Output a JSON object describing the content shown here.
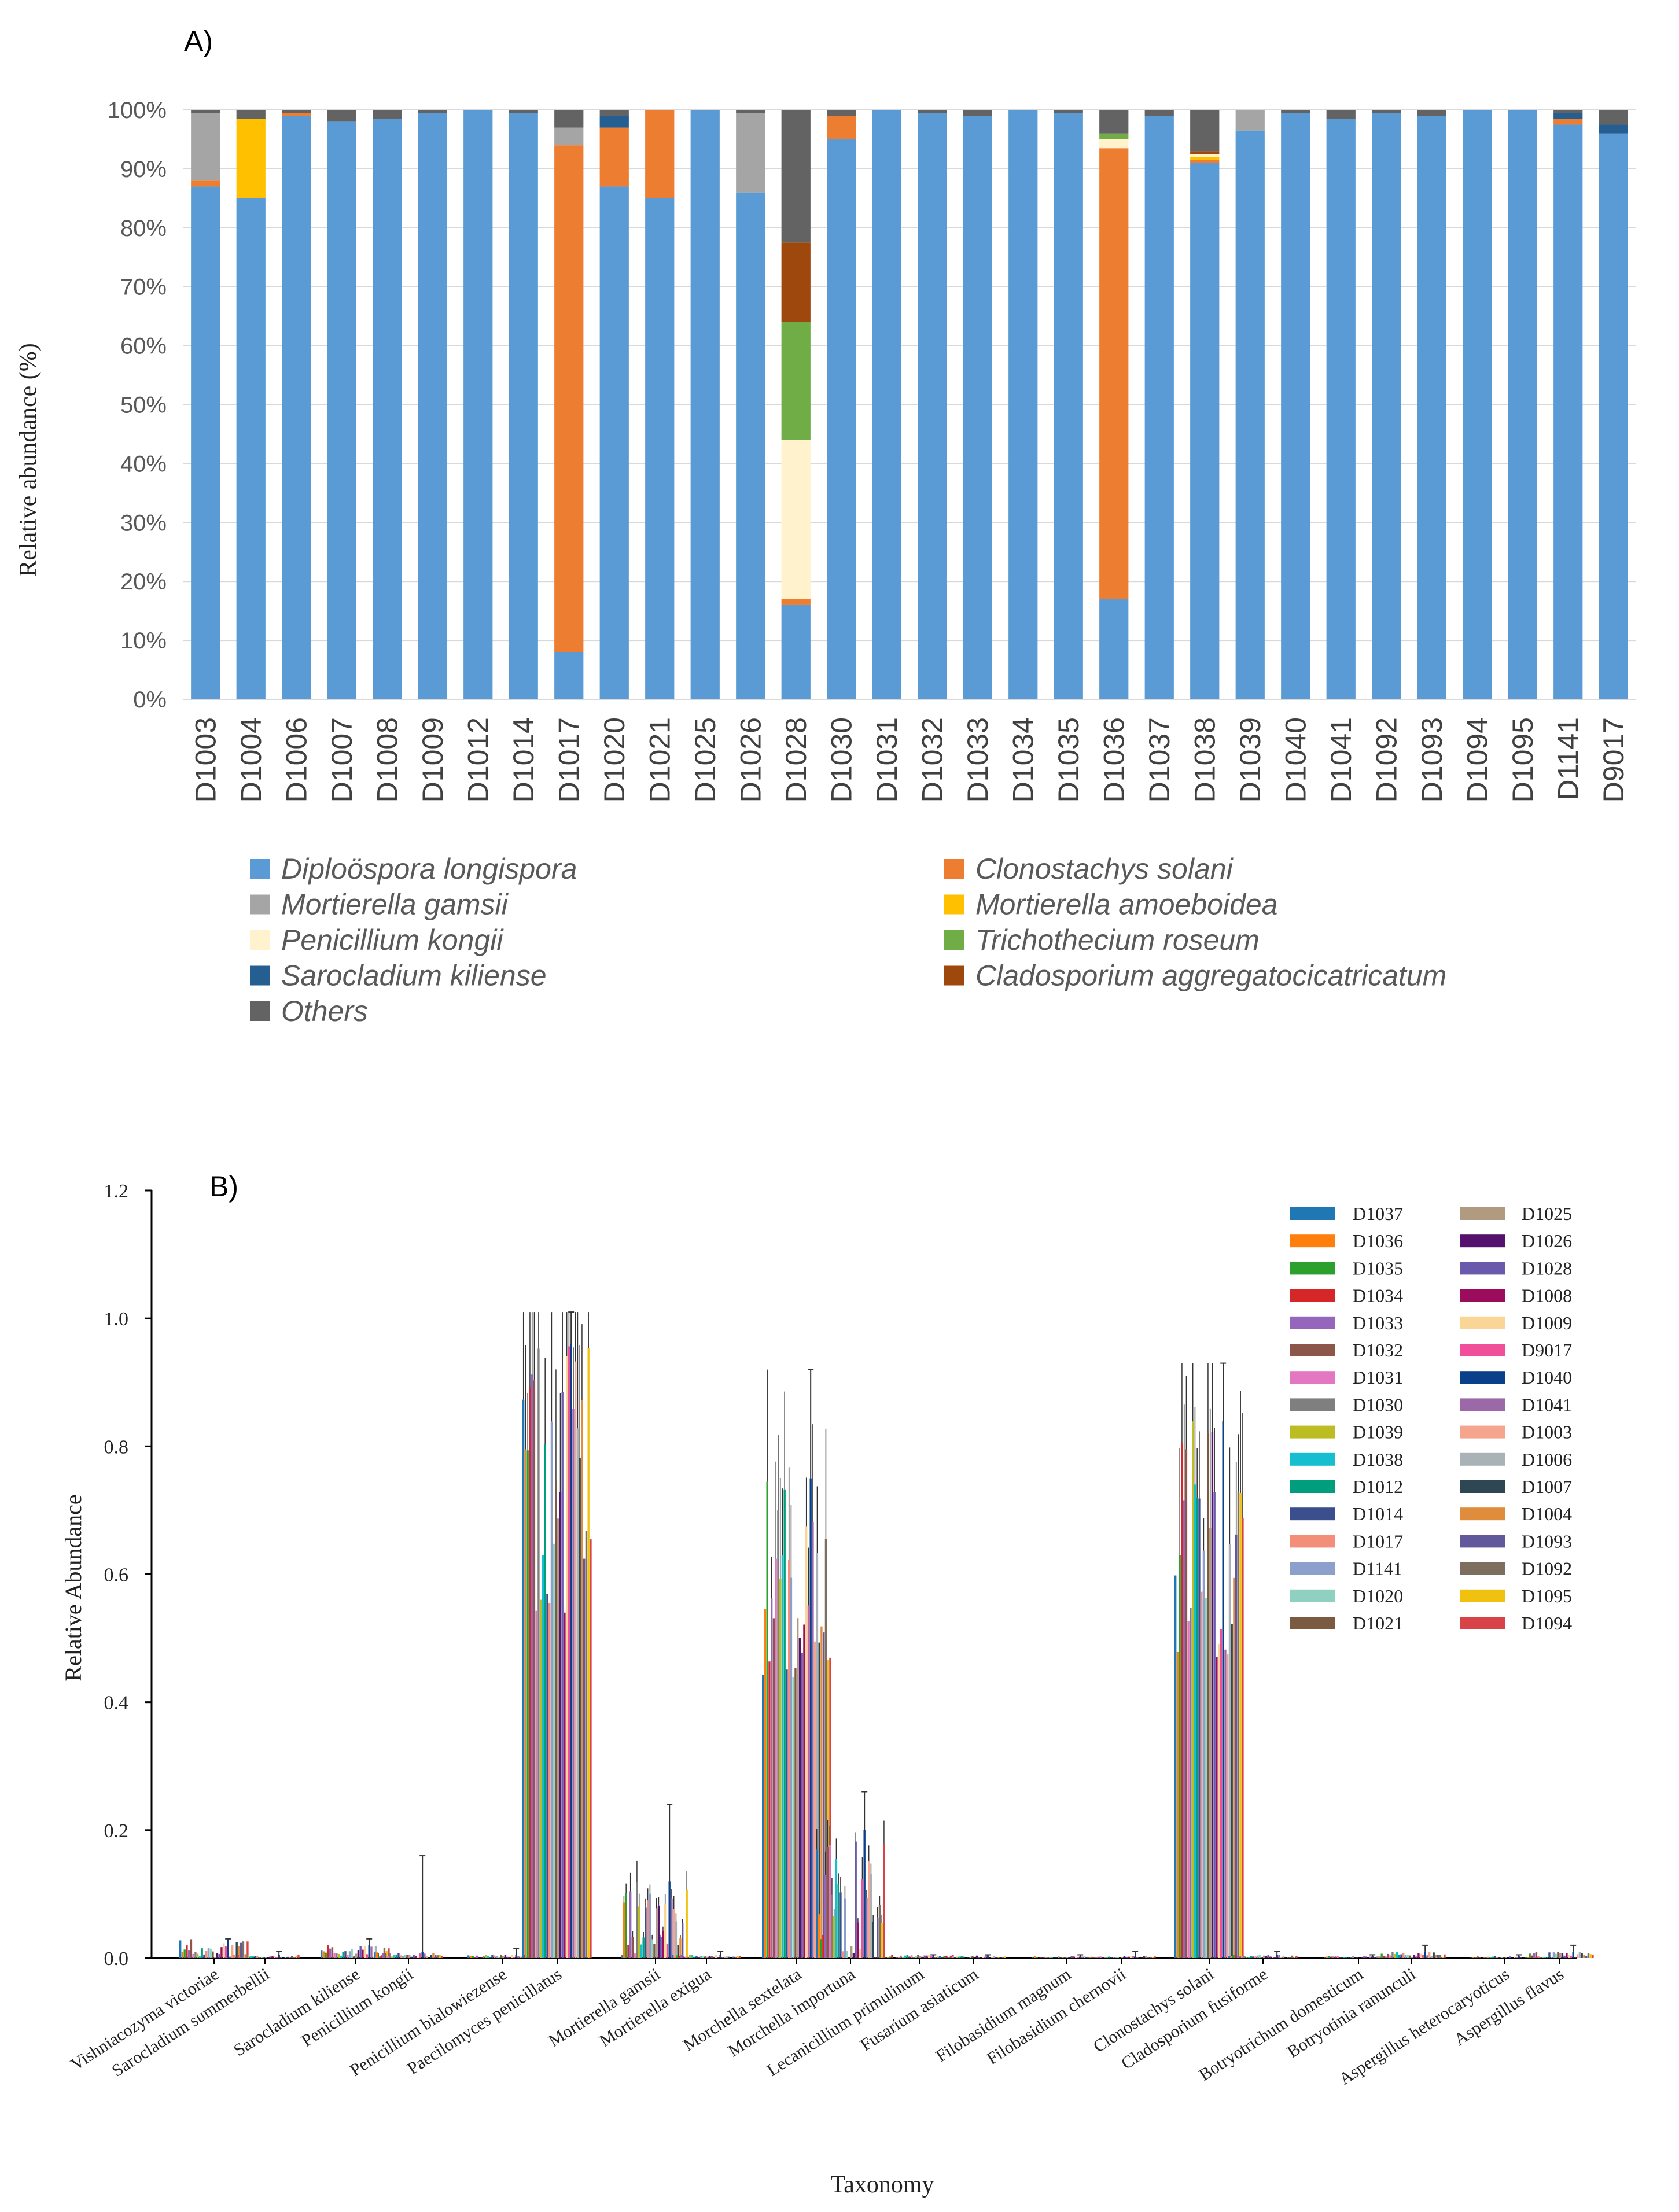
{
  "panelA": {
    "label": "A)",
    "ylabel": "Relative abundance (%)",
    "yticks": [
      "0%",
      "10%",
      "20%",
      "30%",
      "40%",
      "50%",
      "60%",
      "70%",
      "80%",
      "90%",
      "100%"
    ],
    "legend": [
      {
        "name": "Diploöspora longispora",
        "color": "#5b9bd5"
      },
      {
        "name": "Clonostachys solani",
        "color": "#ed7d31"
      },
      {
        "name": "Mortierella gamsii",
        "color": "#a5a5a5"
      },
      {
        "name": "Mortierella amoeboidea",
        "color": "#ffc000"
      },
      {
        "name": "Penicillium kongii",
        "color": "#fff2cc"
      },
      {
        "name": "Trichothecium roseum",
        "color": "#70ad47"
      },
      {
        "name": "Sarocladium kiliense",
        "color": "#255e91"
      },
      {
        "name": "Cladosporium aggregatocicatricatum",
        "color": "#9e480e"
      },
      {
        "name": "Others",
        "color": "#636363"
      }
    ]
  },
  "panelB": {
    "label": "B)",
    "ylabel": "Relative Abundance",
    "xlabel": "Taxonomy",
    "yticks": [
      "0.0",
      "0.2",
      "0.4",
      "0.6",
      "0.8",
      "1.0",
      "1.2"
    ],
    "legend_left": [
      {
        "name": "D1037",
        "color": "#1f77b4"
      },
      {
        "name": "D1036",
        "color": "#ff7f0e"
      },
      {
        "name": "D1035",
        "color": "#2ca02c"
      },
      {
        "name": "D1034",
        "color": "#d62728"
      },
      {
        "name": "D1033",
        "color": "#9467bd"
      },
      {
        "name": "D1032",
        "color": "#8c564b"
      },
      {
        "name": "D1031",
        "color": "#e377c2"
      },
      {
        "name": "D1030",
        "color": "#7f7f7f"
      },
      {
        "name": "D1039",
        "color": "#bcbd22"
      },
      {
        "name": "D1038",
        "color": "#17becf"
      },
      {
        "name": "D1012",
        "color": "#009e7c"
      },
      {
        "name": "D1014",
        "color": "#3b4f8e"
      },
      {
        "name": "D1017",
        "color": "#f28e7a"
      },
      {
        "name": "D1141",
        "color": "#8da0cb"
      },
      {
        "name": "D1020",
        "color": "#8fd1c1"
      },
      {
        "name": "D1021",
        "color": "#7a5a40"
      }
    ],
    "legend_right": [
      {
        "name": "D1025",
        "color": "#b09a80"
      },
      {
        "name": "D1026",
        "color": "#54116d"
      },
      {
        "name": "D1028",
        "color": "#6a5aab"
      },
      {
        "name": "D1008",
        "color": "#9c0c5c"
      },
      {
        "name": "D1009",
        "color": "#f9d596"
      },
      {
        "name": "D9017",
        "color": "#f0509a"
      },
      {
        "name": "D1040",
        "color": "#0a3f8a"
      },
      {
        "name": "D1041",
        "color": "#9b69a8"
      },
      {
        "name": "D1003",
        "color": "#f5a58d"
      },
      {
        "name": "D1006",
        "color": "#a9b2b7"
      },
      {
        "name": "D1007",
        "color": "#2f4653"
      },
      {
        "name": "D1004",
        "color": "#e08c3d"
      },
      {
        "name": "D1093",
        "color": "#62589c"
      },
      {
        "name": "D1092",
        "color": "#7d6e60"
      },
      {
        "name": "D1095",
        "color": "#f0c10f"
      },
      {
        "name": "D1094",
        "color": "#d8434a"
      }
    ]
  },
  "chart_data": [
    {
      "type": "bar",
      "stacked": true,
      "title": "A)",
      "xlabel": "",
      "ylabel": "Relative abundance (%)",
      "ylim": [
        0,
        100
      ],
      "categories": [
        "D1003",
        "D1004",
        "D1006",
        "D1007",
        "D1008",
        "D1009",
        "D1012",
        "D1014",
        "D1017",
        "D1020",
        "D1021",
        "D1025",
        "D1026",
        "D1028",
        "D1030",
        "D1031",
        "D1032",
        "D1033",
        "D1034",
        "D1035",
        "D1036",
        "D1037",
        "D1038",
        "D1039",
        "D1040",
        "D1041",
        "D1092",
        "D1093",
        "D1094",
        "D1095",
        "D1141",
        "D9017"
      ],
      "series": [
        {
          "name": "Diploöspora longispora",
          "values": [
            87,
            85,
            99,
            98,
            98.5,
            99.5,
            100,
            99.5,
            8,
            87,
            85,
            100,
            86,
            16,
            95,
            100,
            99.5,
            99,
            100,
            99.5,
            17,
            99,
            91,
            96.5,
            99.5,
            98.5,
            99.5,
            99,
            100,
            100,
            97.5,
            96
          ]
        },
        {
          "name": "Clonostachys solani",
          "values": [
            1,
            0,
            0.5,
            0,
            0,
            0,
            0,
            0,
            86,
            10,
            15,
            0,
            0,
            1,
            4,
            0,
            0,
            0,
            0,
            0,
            76.5,
            0,
            0.5,
            0,
            0,
            0,
            0,
            0,
            0,
            0,
            1,
            0
          ]
        },
        {
          "name": "Mortierella gamsii",
          "values": [
            11.5,
            0,
            0,
            0,
            0,
            0,
            0,
            0,
            3,
            0,
            0,
            0,
            13.5,
            0,
            0,
            0,
            0,
            0,
            0,
            0,
            0,
            0,
            0,
            3.5,
            0,
            0,
            0,
            0,
            0,
            0,
            0,
            0
          ]
        },
        {
          "name": "Mortierella amoeboidea",
          "values": [
            0,
            13.5,
            0,
            0,
            0,
            0,
            0,
            0,
            0,
            0,
            0,
            0,
            0,
            0,
            0,
            0,
            0,
            0,
            0,
            0,
            0,
            0,
            0.5,
            0,
            0,
            0,
            0,
            0,
            0,
            0,
            0,
            0
          ]
        },
        {
          "name": "Penicillium kongii",
          "values": [
            0,
            0,
            0,
            0,
            0,
            0,
            0,
            0,
            0,
            0,
            0,
            0,
            0,
            27,
            0,
            0,
            0,
            0,
            0,
            0,
            1.5,
            0,
            0.5,
            0,
            0,
            0,
            0,
            0,
            0,
            0,
            0,
            0
          ]
        },
        {
          "name": "Trichothecium roseum",
          "values": [
            0,
            0,
            0,
            0,
            0,
            0,
            0,
            0,
            0,
            0,
            0,
            0,
            0,
            20,
            0,
            0,
            0,
            0,
            0,
            0,
            1,
            0,
            0,
            0,
            0,
            0,
            0,
            0,
            0,
            0,
            0,
            0
          ]
        },
        {
          "name": "Sarocladium kiliense",
          "values": [
            0,
            0,
            0,
            0,
            0,
            0,
            0,
            0,
            0,
            2,
            0,
            0,
            0,
            0,
            0,
            0,
            0,
            0,
            0,
            0,
            0,
            0,
            0,
            0,
            0,
            0,
            0,
            0,
            0,
            0,
            1,
            1.5
          ]
        },
        {
          "name": "Cladosporium aggregatocicatricatum",
          "values": [
            0,
            0,
            0,
            0,
            0,
            0,
            0,
            0,
            0,
            0,
            0,
            0,
            0,
            13.5,
            0,
            0,
            0,
            0,
            0,
            0,
            0,
            0,
            0.5,
            0,
            0,
            0,
            0,
            0,
            0,
            0,
            0,
            0
          ]
        },
        {
          "name": "Others",
          "values": [
            0.5,
            1.5,
            0.5,
            2,
            1.5,
            0.5,
            0,
            0.5,
            3,
            1,
            0,
            0,
            0.5,
            22.5,
            1,
            0,
            0.5,
            1,
            0,
            0.5,
            4,
            1,
            7,
            0,
            0.5,
            1.5,
            0.5,
            1,
            0,
            0,
            0.5,
            2.5
          ]
        }
      ]
    },
    {
      "type": "bar",
      "grouped": true,
      "title": "B)",
      "xlabel": "Taxonomy",
      "ylabel": "Relative Abundance",
      "ylim": [
        0,
        1.2
      ],
      "categories": [
        "Vishniacozyma victoriae",
        "Sarocladium summerbellii",
        "Sarocladium kiliense",
        "Penicillium kongii",
        "Penicillium bialowiezense",
        "Paecilomyces penicillatus",
        "Mortierella gamsii",
        "Mortierella exigua",
        "Morchella sextelata",
        "Morchella importuna",
        "Lecanicillium primulinum",
        "Fusarium asiaticum",
        "Filobasidium magnum",
        "Filobasidium chernovii",
        "Clonostachys solani",
        "Cladosporium fusiforme",
        "Botryotrichum domesticum",
        "Botryotinia ranunculi",
        "Aspergillus heterocaryoticus",
        "Aspergillus flavus"
      ],
      "samples": [
        "D1037",
        "D1036",
        "D1035",
        "D1034",
        "D1033",
        "D1032",
        "D1031",
        "D1030",
        "D1039",
        "D1038",
        "D1012",
        "D1014",
        "D1017",
        "D1141",
        "D1020",
        "D1021",
        "D1025",
        "D1026",
        "D1028",
        "D1008",
        "D1009",
        "D9017",
        "D1040",
        "D1041",
        "D1003",
        "D1006",
        "D1007",
        "D1004",
        "D1093",
        "D1092",
        "D1095",
        "D1094"
      ],
      "group_summary": [
        {
          "taxon": "Vishniacozyma victoriae",
          "max": 0.03,
          "peak_error_top": 0.03
        },
        {
          "taxon": "Sarocladium summerbellii",
          "max": 0.005,
          "peak_error_top": 0.01
        },
        {
          "taxon": "Sarocladium kiliense",
          "max": 0.02,
          "peak_error_top": 0.03
        },
        {
          "taxon": "Penicillium kongii",
          "max": 0.01,
          "peak_error_top": 0.16
        },
        {
          "taxon": "Penicillium bialowiezense",
          "max": 0.005,
          "peak_error_top": 0.015
        },
        {
          "taxon": "Paecilomyces penicillatus",
          "max": 0.96,
          "peak_error_top": 1.01
        },
        {
          "taxon": "Mortierella gamsii",
          "max": 0.12,
          "peak_error_top": 0.24
        },
        {
          "taxon": "Mortierella exigua",
          "max": 0.005,
          "peak_error_top": 0.01
        },
        {
          "taxon": "Morchella sextelata",
          "max": 0.75,
          "peak_error_top": 0.92
        },
        {
          "taxon": "Morchella importuna",
          "max": 0.2,
          "peak_error_top": 0.26
        },
        {
          "taxon": "Lecanicillium primulinum",
          "max": 0.005,
          "peak_error_top": 0.005
        },
        {
          "taxon": "Fusarium asiaticum",
          "max": 0.004,
          "peak_error_top": 0.005
        },
        {
          "taxon": "Filobasidium magnum",
          "max": 0.003,
          "peak_error_top": 0.005
        },
        {
          "taxon": "Filobasidium chernovii",
          "max": 0.003,
          "peak_error_top": 0.01
        },
        {
          "taxon": "Clonostachys solani",
          "max": 0.84,
          "peak_error_top": 0.93
        },
        {
          "taxon": "Cladosporium fusiforme",
          "max": 0.005,
          "peak_error_top": 0.01
        },
        {
          "taxon": "Botryotrichum domesticum",
          "max": 0.003,
          "peak_error_top": 0.005
        },
        {
          "taxon": "Botryotinia ranunculi",
          "max": 0.01,
          "peak_error_top": 0.02
        },
        {
          "taxon": "Aspergillus heterocaryoticus",
          "max": 0.003,
          "peak_error_top": 0.005
        },
        {
          "taxon": "Aspergillus flavus",
          "max": 0.01,
          "peak_error_top": 0.02
        }
      ]
    }
  ]
}
